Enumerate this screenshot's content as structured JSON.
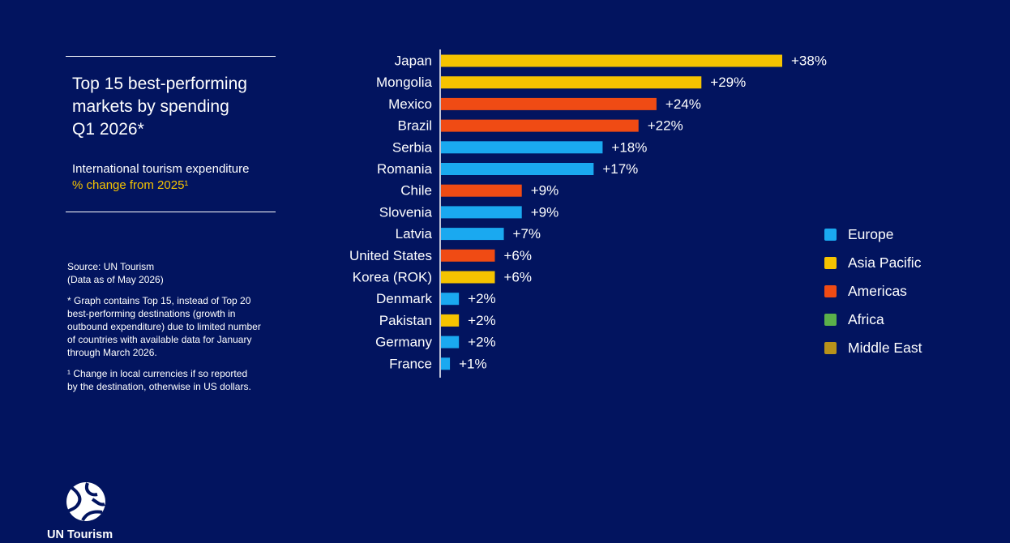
{
  "title_lines": [
    "Top 15 best-performing",
    "markets by spending",
    "Q1 2026*"
  ],
  "subtitle": "International tourism expenditure",
  "subtitle_accent": "% change from 2025¹",
  "source": [
    "Source: UN Tourism",
    "(Data as of May 2026)"
  ],
  "footnote_star": [
    "* Graph contains Top 15, instead of Top 20",
    "best-performing destinations (growth in",
    "outbound expenditure) due to limited number",
    "of countries with available data for January",
    "through March 2026."
  ],
  "footnote_one": [
    "¹ Change in local currencies if so reported",
    "by the destination, otherwise in US dollars."
  ],
  "logo_text": "UN Tourism",
  "colors": {
    "background": "#02145f",
    "Europe": "#1aa9f0",
    "Asia Pacific": "#f5c300",
    "Americas": "#f04b14",
    "Africa": "#5bb04a",
    "Middle East": "#b8921a"
  },
  "legend": [
    "Europe",
    "Asia Pacific",
    "Americas",
    "Africa",
    "Middle East"
  ],
  "chart_data": {
    "type": "bar",
    "orientation": "horizontal",
    "title": "Top 15 best-performing markets by spending Q1 2026*",
    "xlabel": "",
    "ylabel": "",
    "value_unit": "%",
    "xlim": [
      0,
      38
    ],
    "grid": false,
    "legend_position": "right",
    "categories": [
      "Japan",
      "Mongolia",
      "Mexico",
      "Brazil",
      "Serbia",
      "Romania",
      "Chile",
      "Slovenia",
      "Latvia",
      "United States",
      "Korea (ROK)",
      "Denmark",
      "Pakistan",
      "Germany",
      "France"
    ],
    "values": [
      38,
      29,
      24,
      22,
      18,
      17,
      9,
      9,
      7,
      6,
      6,
      2,
      2,
      2,
      1
    ],
    "labels": [
      "+38%",
      "+29%",
      "+24%",
      "+22%",
      "+18%",
      "+17%",
      "+9%",
      "+9%",
      "+7%",
      "+6%",
      "+6%",
      "+2%",
      "+2%",
      "+2%",
      "+1%"
    ],
    "regions": [
      "Asia Pacific",
      "Asia Pacific",
      "Americas",
      "Americas",
      "Europe",
      "Europe",
      "Americas",
      "Europe",
      "Europe",
      "Americas",
      "Asia Pacific",
      "Europe",
      "Asia Pacific",
      "Europe",
      "Europe"
    ]
  }
}
